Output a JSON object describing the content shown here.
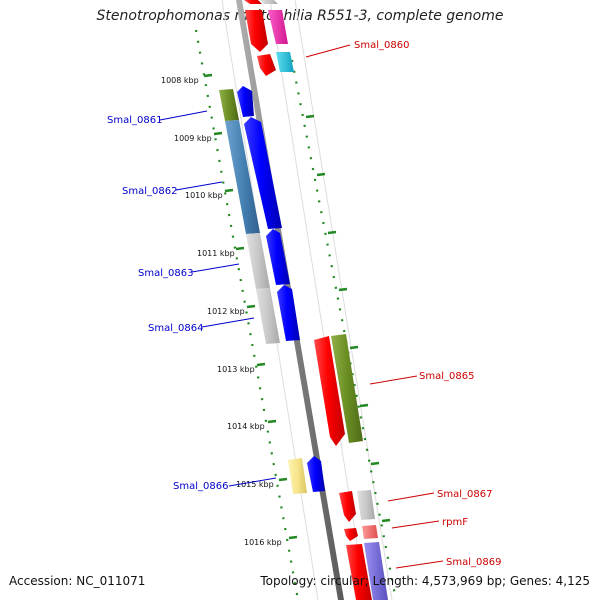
{
  "title": "Stenotrophomonas maltophilia R551-3, complete genome",
  "accession": "Accession: NC_011071",
  "summary": "Topology: circular; Length: 4,573,969 bp; Genes: 4,125",
  "ticks": [
    "1008 kbp",
    "1009 kbp",
    "1010 kbp",
    "1011 kbp",
    "1012 kbp",
    "1013 kbp",
    "1014 kbp",
    "1015 kbp",
    "1016 kbp"
  ],
  "labels": {
    "smal_0860": "Smal_0860",
    "smal_0861": "Smal_0861",
    "smal_0862": "Smal_0862",
    "smal_0863": "Smal_0863",
    "smal_0864": "Smal_0864",
    "smal_0865": "Smal_0865",
    "smal_0866": "Smal_0866",
    "smal_0867": "Smal_0867",
    "rpmf": "rpmF",
    "smal_0869": "Smal_0869"
  },
  "colors": {
    "reverse_label": "#cc0000",
    "forward_label": "#0000cc",
    "backbone": "#777777",
    "tick": "#228822"
  }
}
